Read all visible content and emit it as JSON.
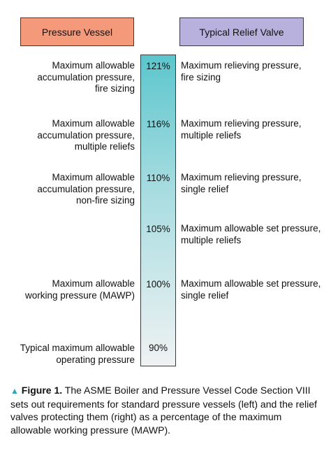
{
  "headers": {
    "left": "Pressure Vessel",
    "right": "Typical Relief Valve"
  },
  "colors": {
    "left_header_bg": "#f5997b",
    "right_header_bg": "#b9b1dd",
    "bar_top": "#5cc6cd",
    "bar_bottom": "#f0f2f3",
    "caption_marker": "#2aa7b8"
  },
  "levels": [
    {
      "percent": "121%",
      "left_lines": [
        "Maximum allowable",
        "accumulation pressure,",
        "fire sizing"
      ],
      "right_lines": [
        "Maximum relieving pressure,",
        "fire sizing"
      ]
    },
    {
      "percent": "116%",
      "left_lines": [
        "Maximum allowable",
        "accumulation pressure,",
        "multiple reliefs"
      ],
      "right_lines": [
        "Maximum relieving pressure,",
        "multiple reliefs"
      ]
    },
    {
      "percent": "110%",
      "left_lines": [
        "Maximum allowable",
        "accumulation pressure,",
        "non-fire sizing"
      ],
      "right_lines": [
        "Maximum relieving pressure,",
        "single relief"
      ]
    },
    {
      "percent": "105%",
      "left_lines": [],
      "right_lines": [
        "Maximum allowable set pressure,",
        "multiple reliefs"
      ]
    },
    {
      "percent": "100%",
      "left_lines": [
        "Maximum allowable",
        "working pressure (MAWP)"
      ],
      "right_lines": [
        "Maximum allowable set pressure,",
        "single relief"
      ]
    },
    {
      "percent": "90%",
      "left_lines": [
        "Typical maximum allowable",
        "operating pressure"
      ],
      "right_lines": []
    }
  ],
  "caption": {
    "marker": "▲",
    "label": "Figure 1.",
    "text": " The ASME Boiler and Pressure Vessel Code Section VIII sets out requirements for standard pressure vessels (left) and the relief valves protecting them (right) as a percentage of the maximum allowable working pressure (MAWP)."
  }
}
